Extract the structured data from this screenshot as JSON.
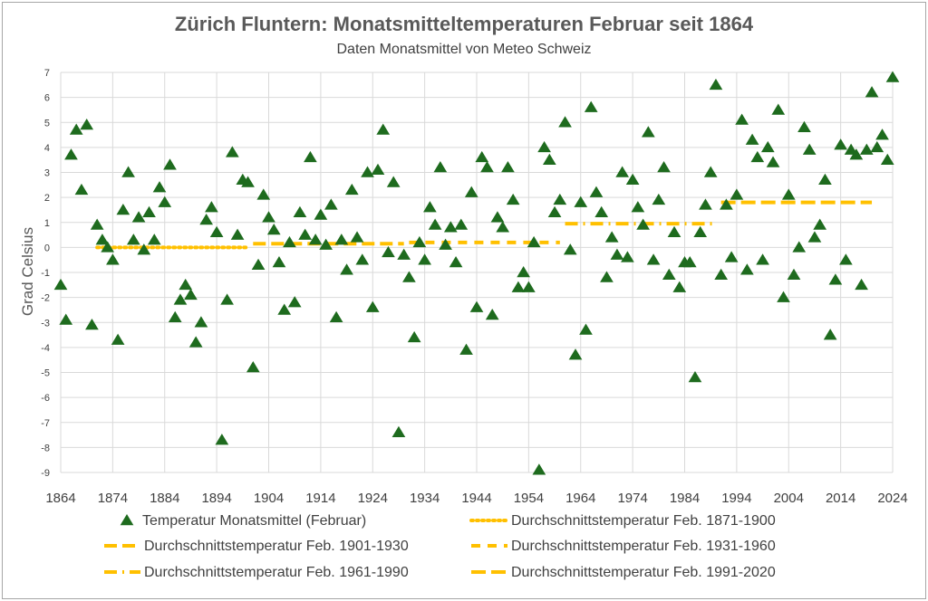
{
  "chart_data": {
    "type": "scatter",
    "title": "Zürich Fluntern: Monatsmitteltemperaturen Februar seit 1864",
    "subtitle": "Daten Monatsmittel von Meteo Schweiz",
    "ylabel": "Grad Celsius",
    "xlabel": "",
    "xlim": [
      1864,
      2024
    ],
    "ylim": [
      -9,
      7
    ],
    "x_ticks": [
      "1864",
      "1874",
      "1884",
      "1894",
      "1904",
      "1914",
      "1924",
      "1934",
      "1944",
      "1954",
      "1964",
      "1974",
      "1984",
      "1994",
      "2004",
      "2014",
      "2024"
    ],
    "y_ticks": [
      "7",
      "6",
      "5",
      "4",
      "3",
      "2",
      "1",
      "0",
      "-1",
      "-2",
      "-3",
      "-4",
      "-5",
      "-6",
      "-7",
      "-8",
      "-9"
    ],
    "grid": "horizontal and vertical",
    "legend_position": "bottom",
    "series": [
      {
        "name": "Temperatur Monatsmittel (Februar)",
        "kind": "triangle-marker",
        "color": "#1e6b1e",
        "x": [
          1864,
          1865,
          1866,
          1867,
          1868,
          1869,
          1870,
          1871,
          1872,
          1873,
          1874,
          1875,
          1876,
          1877,
          1878,
          1879,
          1880,
          1881,
          1882,
          1883,
          1884,
          1885,
          1886,
          1887,
          1888,
          1889,
          1890,
          1891,
          1892,
          1893,
          1894,
          1895,
          1896,
          1897,
          1898,
          1899,
          1900,
          1901,
          1902,
          1903,
          1904,
          1905,
          1906,
          1907,
          1908,
          1909,
          1910,
          1911,
          1912,
          1913,
          1914,
          1915,
          1916,
          1917,
          1918,
          1919,
          1920,
          1921,
          1922,
          1923,
          1924,
          1925,
          1926,
          1927,
          1928,
          1929,
          1930,
          1931,
          1932,
          1933,
          1934,
          1935,
          1936,
          1937,
          1938,
          1939,
          1940,
          1941,
          1942,
          1943,
          1944,
          1945,
          1946,
          1947,
          1948,
          1949,
          1950,
          1951,
          1952,
          1953,
          1954,
          1955,
          1956,
          1957,
          1958,
          1959,
          1960,
          1961,
          1962,
          1963,
          1964,
          1965,
          1966,
          1967,
          1968,
          1969,
          1970,
          1971,
          1972,
          1973,
          1974,
          1975,
          1976,
          1977,
          1978,
          1979,
          1980,
          1981,
          1982,
          1983,
          1984,
          1985,
          1986,
          1987,
          1988,
          1989,
          1990,
          1991,
          1992,
          1993,
          1994,
          1995,
          1996,
          1997,
          1998,
          1999,
          2000,
          2001,
          2002,
          2003,
          2004,
          2005,
          2006,
          2007,
          2008,
          2009,
          2010,
          2011,
          2012,
          2013,
          2014,
          2015,
          2016,
          2017,
          2018,
          2019,
          2020,
          2021,
          2022,
          2023,
          2024
        ],
        "y": [
          -1.5,
          -2.9,
          3.7,
          4.7,
          2.3,
          4.9,
          -3.1,
          0.9,
          0.3,
          0.0,
          -0.5,
          -3.7,
          1.5,
          3.0,
          0.3,
          1.2,
          -0.1,
          1.4,
          0.3,
          2.4,
          1.8,
          3.3,
          -2.8,
          -2.1,
          -1.5,
          -1.9,
          -3.8,
          -3.0,
          1.1,
          1.6,
          0.6,
          -7.7,
          -2.1,
          3.8,
          0.5,
          2.7,
          2.6,
          -4.8,
          -0.7,
          2.1,
          1.2,
          0.7,
          -0.6,
          -2.5,
          0.2,
          -2.2,
          1.4,
          0.5,
          3.6,
          0.3,
          1.3,
          0.1,
          1.7,
          -2.8,
          0.3,
          -0.9,
          2.3,
          0.4,
          -0.5,
          3.0,
          -2.4,
          3.1,
          4.7,
          -0.2,
          2.6,
          -7.4,
          -0.3,
          -1.2,
          -3.6,
          0.2,
          -0.5,
          1.6,
          0.9,
          3.2,
          0.1,
          0.8,
          -0.6,
          0.9,
          -4.1,
          2.2,
          -2.4,
          3.6,
          3.2,
          -2.7,
          1.2,
          0.8,
          3.2,
          1.9,
          -1.6,
          -1.0,
          -1.6,
          0.2,
          -8.9,
          4.0,
          3.5,
          1.4,
          1.9,
          5.0,
          -0.1,
          -4.3,
          1.8,
          -3.3,
          5.6,
          2.2,
          1.4,
          -1.2,
          0.4,
          -0.3,
          3.0,
          -0.4,
          2.7,
          1.6,
          0.9,
          4.6,
          -0.5,
          1.9,
          3.2,
          -1.1,
          0.6,
          -1.6,
          -0.6,
          -0.6,
          -5.2,
          0.6,
          1.7,
          3.0,
          6.5,
          -1.1,
          1.7,
          -0.4,
          2.1,
          5.1,
          -0.9,
          4.3,
          3.6,
          -0.5,
          4.0,
          3.4,
          5.5,
          -2.0,
          2.1,
          -1.1,
          0.0,
          4.8,
          3.9,
          0.4,
          0.9,
          2.7,
          -3.5,
          -1.3,
          4.1,
          -0.5,
          3.9,
          3.7,
          -1.5,
          3.9,
          6.2,
          4.0,
          4.5,
          3.5,
          6.8
        ]
      },
      {
        "name": "Durchschnittstemperatur Feb. 1871-1900",
        "kind": "dotted",
        "color": "#ffc000",
        "x": [
          1871,
          1900
        ],
        "y": [
          0.0,
          0.0
        ]
      },
      {
        "name": "Durchschnittstemperatur Feb. 1901-1930",
        "kind": "long-dash",
        "color": "#ffc000",
        "x": [
          1901,
          1930
        ],
        "y": [
          0.15,
          0.15
        ]
      },
      {
        "name": "Durchschnittstemperatur Feb. 1931-1960",
        "kind": "dash",
        "color": "#ffc000",
        "x": [
          1931,
          1960
        ],
        "y": [
          0.2,
          0.2
        ]
      },
      {
        "name": "Durchschnittstemperatur Feb. 1961-1990",
        "kind": "dash-dot",
        "color": "#ffc000",
        "x": [
          1961,
          1990
        ],
        "y": [
          0.95,
          0.95
        ]
      },
      {
        "name": "Durchschnittstemperatur Feb. 1991-2020",
        "kind": "long-dash-heavy",
        "color": "#ffc000",
        "x": [
          1991,
          2020
        ],
        "y": [
          1.8,
          1.8
        ]
      }
    ]
  }
}
